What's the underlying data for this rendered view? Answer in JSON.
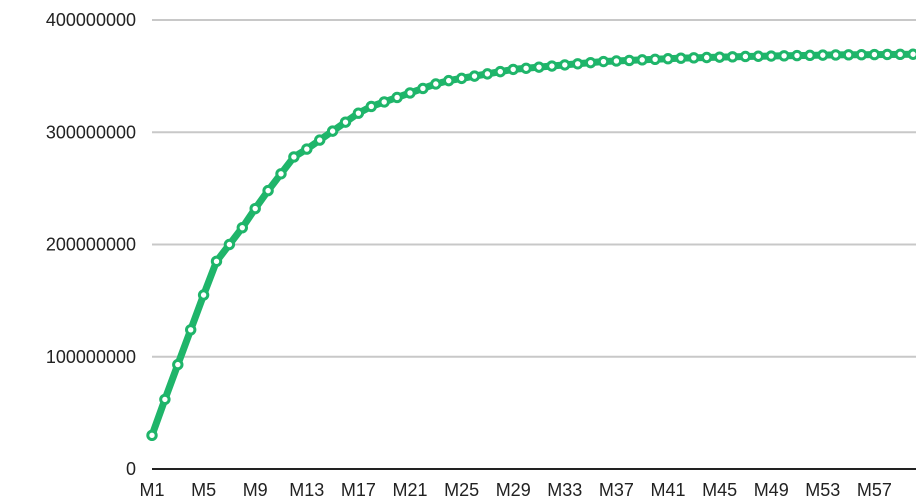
{
  "chart_data": {
    "type": "line",
    "title": "",
    "xlabel": "",
    "ylabel": "",
    "grid": true,
    "legend": "none",
    "ylim": [
      0,
      400000000
    ],
    "yticks": [
      0,
      100000000,
      200000000,
      300000000,
      400000000
    ],
    "ytick_labels": [
      "0",
      "100000000",
      "200000000",
      "300000000",
      "400000000"
    ],
    "x": [
      "M1",
      "M2",
      "M3",
      "M4",
      "M5",
      "M6",
      "M7",
      "M8",
      "M9",
      "M10",
      "M11",
      "M12",
      "M13",
      "M14",
      "M15",
      "M16",
      "M17",
      "M18",
      "M19",
      "M20",
      "M21",
      "M22",
      "M23",
      "M24",
      "M25",
      "M26",
      "M27",
      "M28",
      "M29",
      "M30",
      "M31",
      "M32",
      "M33",
      "M34",
      "M35",
      "M36",
      "M37",
      "M38",
      "M39",
      "M40",
      "M41",
      "M42",
      "M43",
      "M44",
      "M45",
      "M46",
      "M47",
      "M48",
      "M49",
      "M50",
      "M51",
      "M52",
      "M53",
      "M54",
      "M55",
      "M56",
      "M57",
      "M58",
      "M59",
      "M60"
    ],
    "xtick_labels": [
      "M1",
      "M5",
      "M9",
      "M13",
      "M17",
      "M21",
      "M25",
      "M29",
      "M33",
      "M37",
      "M41",
      "M45",
      "M49",
      "M53",
      "M57"
    ],
    "series": [
      {
        "color": "#1fb56a",
        "values": [
          30000000,
          62000000,
          93000000,
          124000000,
          155000000,
          185000000,
          200000000,
          215000000,
          232000000,
          248000000,
          263000000,
          278000000,
          285000000,
          293000000,
          301000000,
          309000000,
          317000000,
          323000000,
          327000000,
          331000000,
          335000000,
          339000000,
          343000000,
          346000000,
          348000000,
          350000000,
          352000000,
          354000000,
          356000000,
          357000000,
          358000000,
          359000000,
          360000000,
          361000000,
          362000000,
          363000000,
          363500000,
          364000000,
          364500000,
          365000000,
          365500000,
          366000000,
          366300000,
          366600000,
          366900000,
          367200000,
          367500000,
          367700000,
          367900000,
          368100000,
          368300000,
          368500000,
          368700000,
          368900000,
          369000000,
          369100000,
          369200000,
          369300000,
          369400000,
          369500000
        ]
      }
    ]
  }
}
